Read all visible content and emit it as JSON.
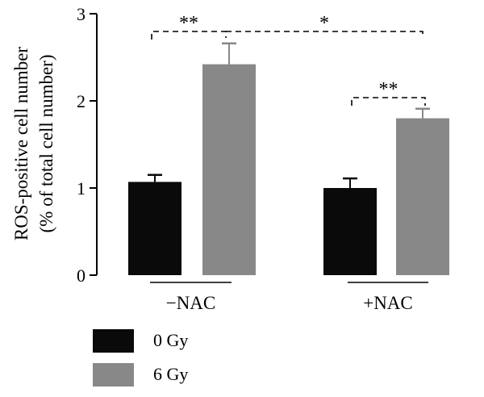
{
  "chart_data": {
    "type": "bar",
    "ylabel_line1": "ROS-positive cell number",
    "ylabel_line2": "(% of total cell number)",
    "ylim": [
      0,
      3
    ],
    "yticks": [
      0,
      1,
      2,
      3
    ],
    "groups": [
      "−NAC",
      "+NAC"
    ],
    "series": [
      {
        "name": "0 Gy",
        "color": "#0a0a0a",
        "values": [
          1.07,
          1.0
        ],
        "errors": [
          0.08,
          0.11
        ]
      },
      {
        "name": "6 Gy",
        "color": "#888888",
        "values": [
          2.42,
          1.8
        ],
        "errors": [
          0.24,
          0.11
        ]
      }
    ],
    "significance": [
      {
        "label": "**",
        "from": "−NAC 0 Gy",
        "to": "−NAC 6 Gy"
      },
      {
        "label": "*",
        "from": "−NAC 6 Gy",
        "to": "+NAC 6 Gy"
      },
      {
        "label": "**",
        "from": "+NAC 0 Gy",
        "to": "+NAC 6 Gy"
      }
    ],
    "grid": false,
    "legend_position": "bottom-left"
  }
}
